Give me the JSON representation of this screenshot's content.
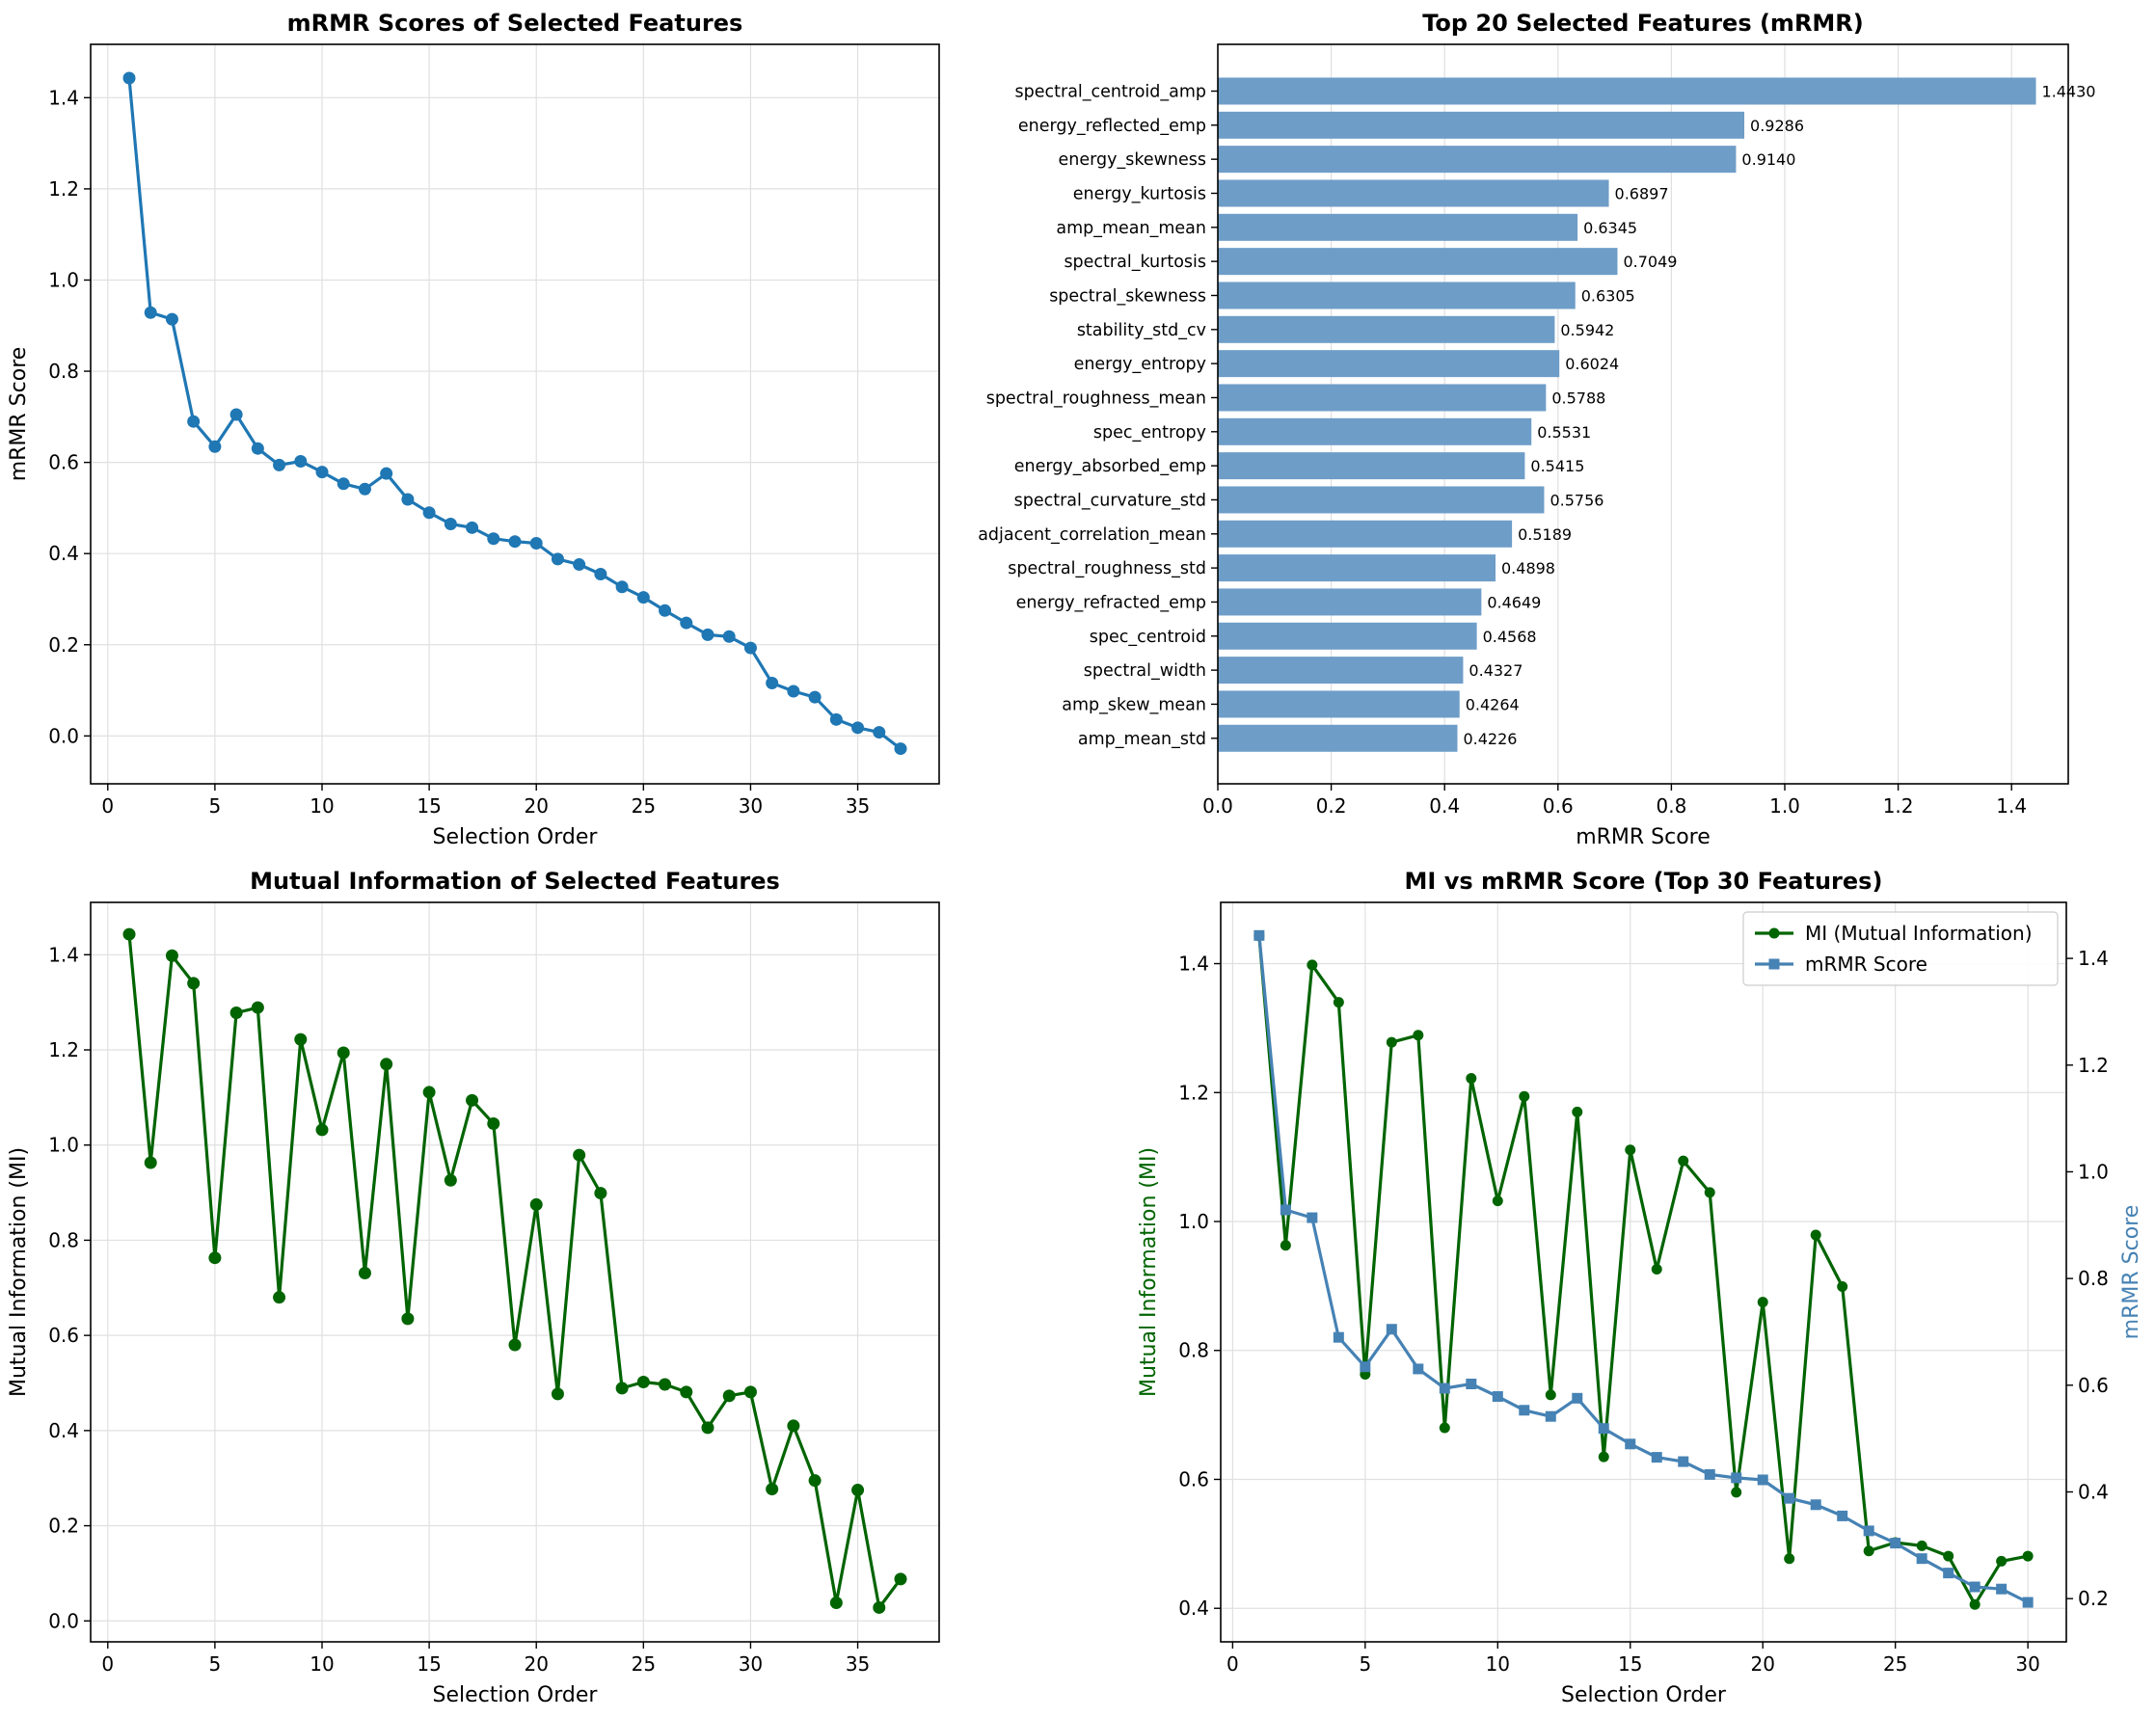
{
  "chart_data": [
    {
      "id": "mrmr_scores",
      "type": "line",
      "title": "mRMR Scores of Selected Features",
      "xlabel": "Selection Order",
      "ylabel": "mRMR Score",
      "xlim": [
        -0.8,
        38.8
      ],
      "ylim": [
        -0.105,
        1.517
      ],
      "xticks": [
        0,
        5,
        10,
        15,
        20,
        25,
        30,
        35
      ],
      "yticks": [
        0.0,
        0.2,
        0.4,
        0.6,
        0.8,
        1.0,
        1.2,
        1.4
      ],
      "grid": true,
      "color": "#1f77b4",
      "series": [
        {
          "name": "mRMR Score",
          "x": [
            1,
            2,
            3,
            4,
            5,
            6,
            7,
            8,
            9,
            10,
            11,
            12,
            13,
            14,
            15,
            16,
            17,
            18,
            19,
            20,
            21,
            22,
            23,
            24,
            25,
            26,
            27,
            28,
            29,
            30,
            31,
            32,
            33,
            34,
            35,
            36,
            37
          ],
          "values": [
            1.443,
            0.9286,
            0.914,
            0.6897,
            0.6345,
            0.7049,
            0.6305,
            0.5942,
            0.6024,
            0.5788,
            0.5531,
            0.5415,
            0.5756,
            0.5189,
            0.4898,
            0.4649,
            0.4568,
            0.4327,
            0.4264,
            0.4226,
            0.388,
            0.376,
            0.355,
            0.327,
            0.304,
            0.275,
            0.248,
            0.222,
            0.218,
            0.193,
            0.116,
            0.098,
            0.085,
            0.036,
            0.018,
            0.008,
            -0.028
          ]
        }
      ]
    },
    {
      "id": "top20_bar",
      "type": "bar",
      "orientation": "horizontal",
      "title": "Top 20 Selected Features (mRMR)",
      "xlabel": "mRMR Score",
      "ylabel": "",
      "xlim": [
        0,
        1.5
      ],
      "xticks": [
        0.0,
        0.2,
        0.4,
        0.6,
        0.8,
        1.0,
        1.2,
        1.4
      ],
      "grid": true,
      "color": "#6e9dc8",
      "categories": [
        "spectral_centroid_amp",
        "energy_reflected_emp",
        "energy_skewness",
        "energy_kurtosis",
        "amp_mean_mean",
        "spectral_kurtosis",
        "spectral_skewness",
        "stability_std_cv",
        "energy_entropy",
        "spectral_roughness_mean",
        "spec_entropy",
        "energy_absorbed_emp",
        "spectral_curvature_std",
        "adjacent_correlation_mean",
        "spectral_roughness_std",
        "energy_refracted_emp",
        "spec_centroid",
        "spectral_width",
        "amp_skew_mean",
        "amp_mean_std"
      ],
      "values": [
        1.443,
        0.9286,
        0.914,
        0.6897,
        0.6345,
        0.7049,
        0.6305,
        0.5942,
        0.6024,
        0.5788,
        0.5531,
        0.5415,
        0.5756,
        0.5189,
        0.4898,
        0.4649,
        0.4568,
        0.4327,
        0.4264,
        0.4226
      ],
      "labels": [
        "1.4430",
        "0.9286",
        "0.9140",
        "0.6897",
        "0.6345",
        "0.7049",
        "0.6305",
        "0.5942",
        "0.6024",
        "0.5788",
        "0.5531",
        "0.5415",
        "0.5756",
        "0.5189",
        "0.4898",
        "0.4649",
        "0.4568",
        "0.4327",
        "0.4264",
        "0.4226"
      ]
    },
    {
      "id": "mi_scores",
      "type": "line",
      "title": "Mutual Information of Selected Features",
      "xlabel": "Selection Order",
      "ylabel": "Mutual Information (MI)",
      "xlim": [
        -0.8,
        38.8
      ],
      "ylim": [
        -0.044,
        1.51
      ],
      "xticks": [
        0,
        5,
        10,
        15,
        20,
        25,
        30,
        35
      ],
      "yticks": [
        0.0,
        0.2,
        0.4,
        0.6,
        0.8,
        1.0,
        1.2,
        1.4
      ],
      "grid": true,
      "color": "#006400",
      "series": [
        {
          "name": "MI",
          "x": [
            1,
            2,
            3,
            4,
            5,
            6,
            7,
            8,
            9,
            10,
            11,
            12,
            13,
            14,
            15,
            16,
            17,
            18,
            19,
            20,
            21,
            22,
            23,
            24,
            25,
            26,
            27,
            28,
            29,
            30,
            31,
            32,
            33,
            34,
            35,
            36,
            37
          ],
          "values": [
            1.443,
            0.963,
            1.398,
            1.34,
            0.763,
            1.278,
            1.289,
            0.68,
            1.222,
            1.032,
            1.194,
            0.731,
            1.17,
            0.635,
            1.111,
            0.926,
            1.094,
            1.045,
            0.58,
            0.875,
            0.477,
            0.979,
            0.899,
            0.489,
            0.502,
            0.497,
            0.481,
            0.406,
            0.473,
            0.481,
            0.277,
            0.41,
            0.295,
            0.038,
            0.275,
            0.028,
            0.088
          ]
        }
      ]
    },
    {
      "id": "mi_vs_mrmr",
      "type": "line",
      "title": "MI vs mRMR Score (Top 30 Features)",
      "xlabel": "Selection Order",
      "ylabel": "Mutual Information (MI)",
      "ylabel_right": "mRMR Score",
      "xlim": [
        -0.45,
        31.45
      ],
      "ylim": [
        0.348,
        1.495
      ],
      "ylim_right": [
        0.119,
        1.505
      ],
      "xticks": [
        0,
        5,
        10,
        15,
        20,
        25,
        30
      ],
      "yticks": [
        0.4,
        0.6,
        0.8,
        1.0,
        1.2,
        1.4
      ],
      "yticks_right": [
        0.2,
        0.4,
        0.6,
        0.8,
        1.0,
        1.2,
        1.4
      ],
      "grid": true,
      "legend": "top-right",
      "series": [
        {
          "name": "MI (Mutual Information)",
          "axis": "left",
          "color": "#006400",
          "marker": "circle",
          "x": [
            1,
            2,
            3,
            4,
            5,
            6,
            7,
            8,
            9,
            10,
            11,
            12,
            13,
            14,
            15,
            16,
            17,
            18,
            19,
            20,
            21,
            22,
            23,
            24,
            25,
            26,
            27,
            28,
            29,
            30
          ],
          "values": [
            1.443,
            0.963,
            1.398,
            1.34,
            0.763,
            1.278,
            1.289,
            0.68,
            1.222,
            1.032,
            1.194,
            0.731,
            1.17,
            0.635,
            1.111,
            0.926,
            1.094,
            1.045,
            0.58,
            0.875,
            0.477,
            0.979,
            0.899,
            0.489,
            0.502,
            0.497,
            0.481,
            0.406,
            0.473,
            0.481
          ]
        },
        {
          "name": "mRMR Score",
          "axis": "right",
          "color": "#4682b4",
          "marker": "square",
          "x": [
            1,
            2,
            3,
            4,
            5,
            6,
            7,
            8,
            9,
            10,
            11,
            12,
            13,
            14,
            15,
            16,
            17,
            18,
            19,
            20,
            21,
            22,
            23,
            24,
            25,
            26,
            27,
            28,
            29,
            30
          ],
          "values": [
            1.443,
            0.9286,
            0.914,
            0.6897,
            0.6345,
            0.7049,
            0.6305,
            0.5942,
            0.6024,
            0.5788,
            0.5531,
            0.5415,
            0.5756,
            0.5189,
            0.4898,
            0.4649,
            0.4568,
            0.4327,
            0.4264,
            0.4226,
            0.388,
            0.376,
            0.355,
            0.327,
            0.304,
            0.275,
            0.248,
            0.222,
            0.218,
            0.193
          ]
        }
      ]
    }
  ]
}
